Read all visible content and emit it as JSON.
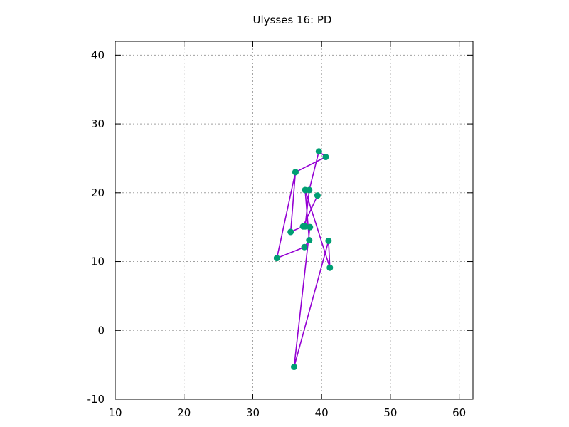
{
  "chart_data": {
    "type": "line",
    "title": "Ulysses 16: PD",
    "xlabel": "",
    "ylabel": "",
    "xlim": [
      10,
      62
    ],
    "ylim": [
      -10,
      42
    ],
    "xticks": [
      10,
      20,
      30,
      40,
      50,
      60
    ],
    "yticks": [
      -10,
      0,
      10,
      20,
      30,
      40
    ],
    "grid": true,
    "legend": "none",
    "colors": {
      "line": "#9400d3",
      "marker": "#009e73",
      "grid": "#a0a0a0",
      "axis": "#000000"
    },
    "series": [
      {
        "markers": true,
        "points": [
          [
            36.2,
            23.0
          ],
          [
            33.5,
            10.5
          ],
          [
            37.5,
            12.1
          ],
          [
            38.2,
            13.1
          ],
          [
            37.6,
            20.4
          ],
          [
            41.2,
            9.1
          ],
          [
            41.0,
            13.0
          ],
          [
            36.0,
            -5.3
          ],
          [
            38.3,
            15.0
          ],
          [
            37.6,
            15.1
          ],
          [
            38.2,
            20.4
          ],
          [
            39.6,
            26.0
          ],
          [
            40.6,
            25.2
          ],
          [
            36.2,
            23.0
          ],
          [
            35.5,
            14.3
          ],
          [
            37.3,
            15.1
          ],
          [
            39.4,
            19.6
          ]
        ]
      }
    ]
  }
}
